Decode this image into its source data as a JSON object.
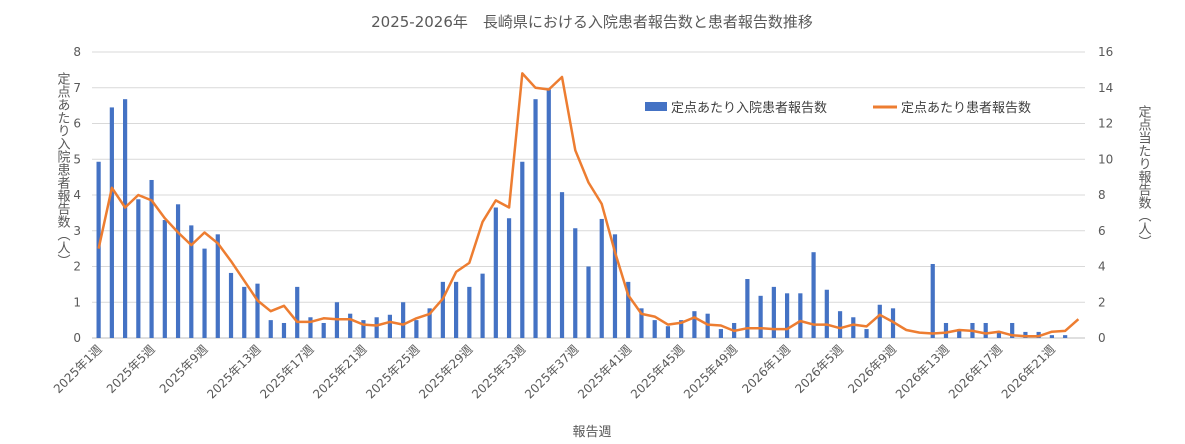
{
  "chart_data": {
    "type": "bar+line",
    "title": "2025-2026年　長崎県における入院患者報告数と患者報告数推移",
    "xlabel": "報告週",
    "ylabel_left": "定点あたり入院患者報告数（人）",
    "ylabel_right": "定点当たり報告数（人）",
    "ylim_left": [
      0,
      8
    ],
    "ylim_right": [
      0,
      16
    ],
    "yticks_left": [
      "0",
      "1",
      "2",
      "3",
      "4",
      "5",
      "6",
      "7",
      "8"
    ],
    "yticks_right": [
      "0",
      "2",
      "4",
      "6",
      "8",
      "10",
      "12",
      "14",
      "16"
    ],
    "grid": true,
    "legend_position": "right-top",
    "x_tick_labels": [
      "2025年1週",
      "2025年5週",
      "2025年9週",
      "2025年13週",
      "2025年17週",
      "2025年21週",
      "2025年25週",
      "2025年29週",
      "2025年33週",
      "2025年37週",
      "2025年41週",
      "2025年45週",
      "2025年49週",
      "2026年1週",
      "2026年5週",
      "2026年9週",
      "2026年13週",
      "2026年17週",
      "2026年21週"
    ],
    "week_count": 75,
    "series": [
      {
        "name": "定点あたり入院患者報告数",
        "type": "bar",
        "axis": "left",
        "color": "#4472C4",
        "values": [
          4.93,
          6.45,
          6.68,
          3.88,
          4.42,
          3.3,
          3.74,
          3.15,
          2.5,
          2.9,
          1.82,
          1.43,
          1.52,
          0.5,
          0.42,
          1.43,
          0.58,
          0.42,
          1.0,
          0.68,
          0.5,
          0.58,
          0.65,
          1.0,
          0.5,
          0.83,
          1.57,
          1.57,
          1.43,
          1.8,
          3.65,
          3.35,
          4.93,
          6.68,
          6.95,
          4.08,
          3.07,
          2.0,
          3.33,
          2.9,
          1.57,
          0.83,
          0.5,
          0.33,
          0.5,
          0.75,
          0.68,
          0.25,
          0.42,
          1.65,
          1.18,
          1.43,
          1.25,
          1.25,
          2.4,
          1.35,
          0.75,
          0.58,
          0.25,
          0.93,
          0.83,
          0.0,
          0.0,
          2.07,
          0.42,
          0.25,
          0.42,
          0.42,
          0.17,
          0.42,
          0.17,
          0.17,
          0.08,
          0.08,
          0.0
        ]
      },
      {
        "name": "定点あたり患者報告数",
        "type": "line",
        "axis": "right",
        "color": "#ED7D31",
        "values": [
          5.0,
          8.4,
          7.3,
          8.0,
          7.7,
          6.7,
          5.9,
          5.2,
          5.9,
          5.3,
          4.3,
          3.2,
          2.1,
          1.5,
          1.8,
          0.9,
          0.9,
          1.1,
          1.05,
          1.05,
          0.75,
          0.7,
          0.9,
          0.75,
          1.1,
          1.35,
          2.2,
          3.7,
          4.2,
          6.5,
          7.7,
          7.3,
          14.8,
          14.0,
          13.9,
          14.6,
          10.5,
          8.7,
          7.5,
          4.8,
          2.4,
          1.35,
          1.2,
          0.75,
          0.85,
          1.15,
          0.75,
          0.7,
          0.4,
          0.55,
          0.55,
          0.5,
          0.5,
          0.95,
          0.75,
          0.75,
          0.55,
          0.75,
          0.65,
          1.3,
          0.9,
          0.45,
          0.3,
          0.25,
          0.3,
          0.45,
          0.4,
          0.25,
          0.35,
          0.15,
          0.1,
          0.1,
          0.35,
          0.4,
          1.05
        ]
      }
    ]
  }
}
